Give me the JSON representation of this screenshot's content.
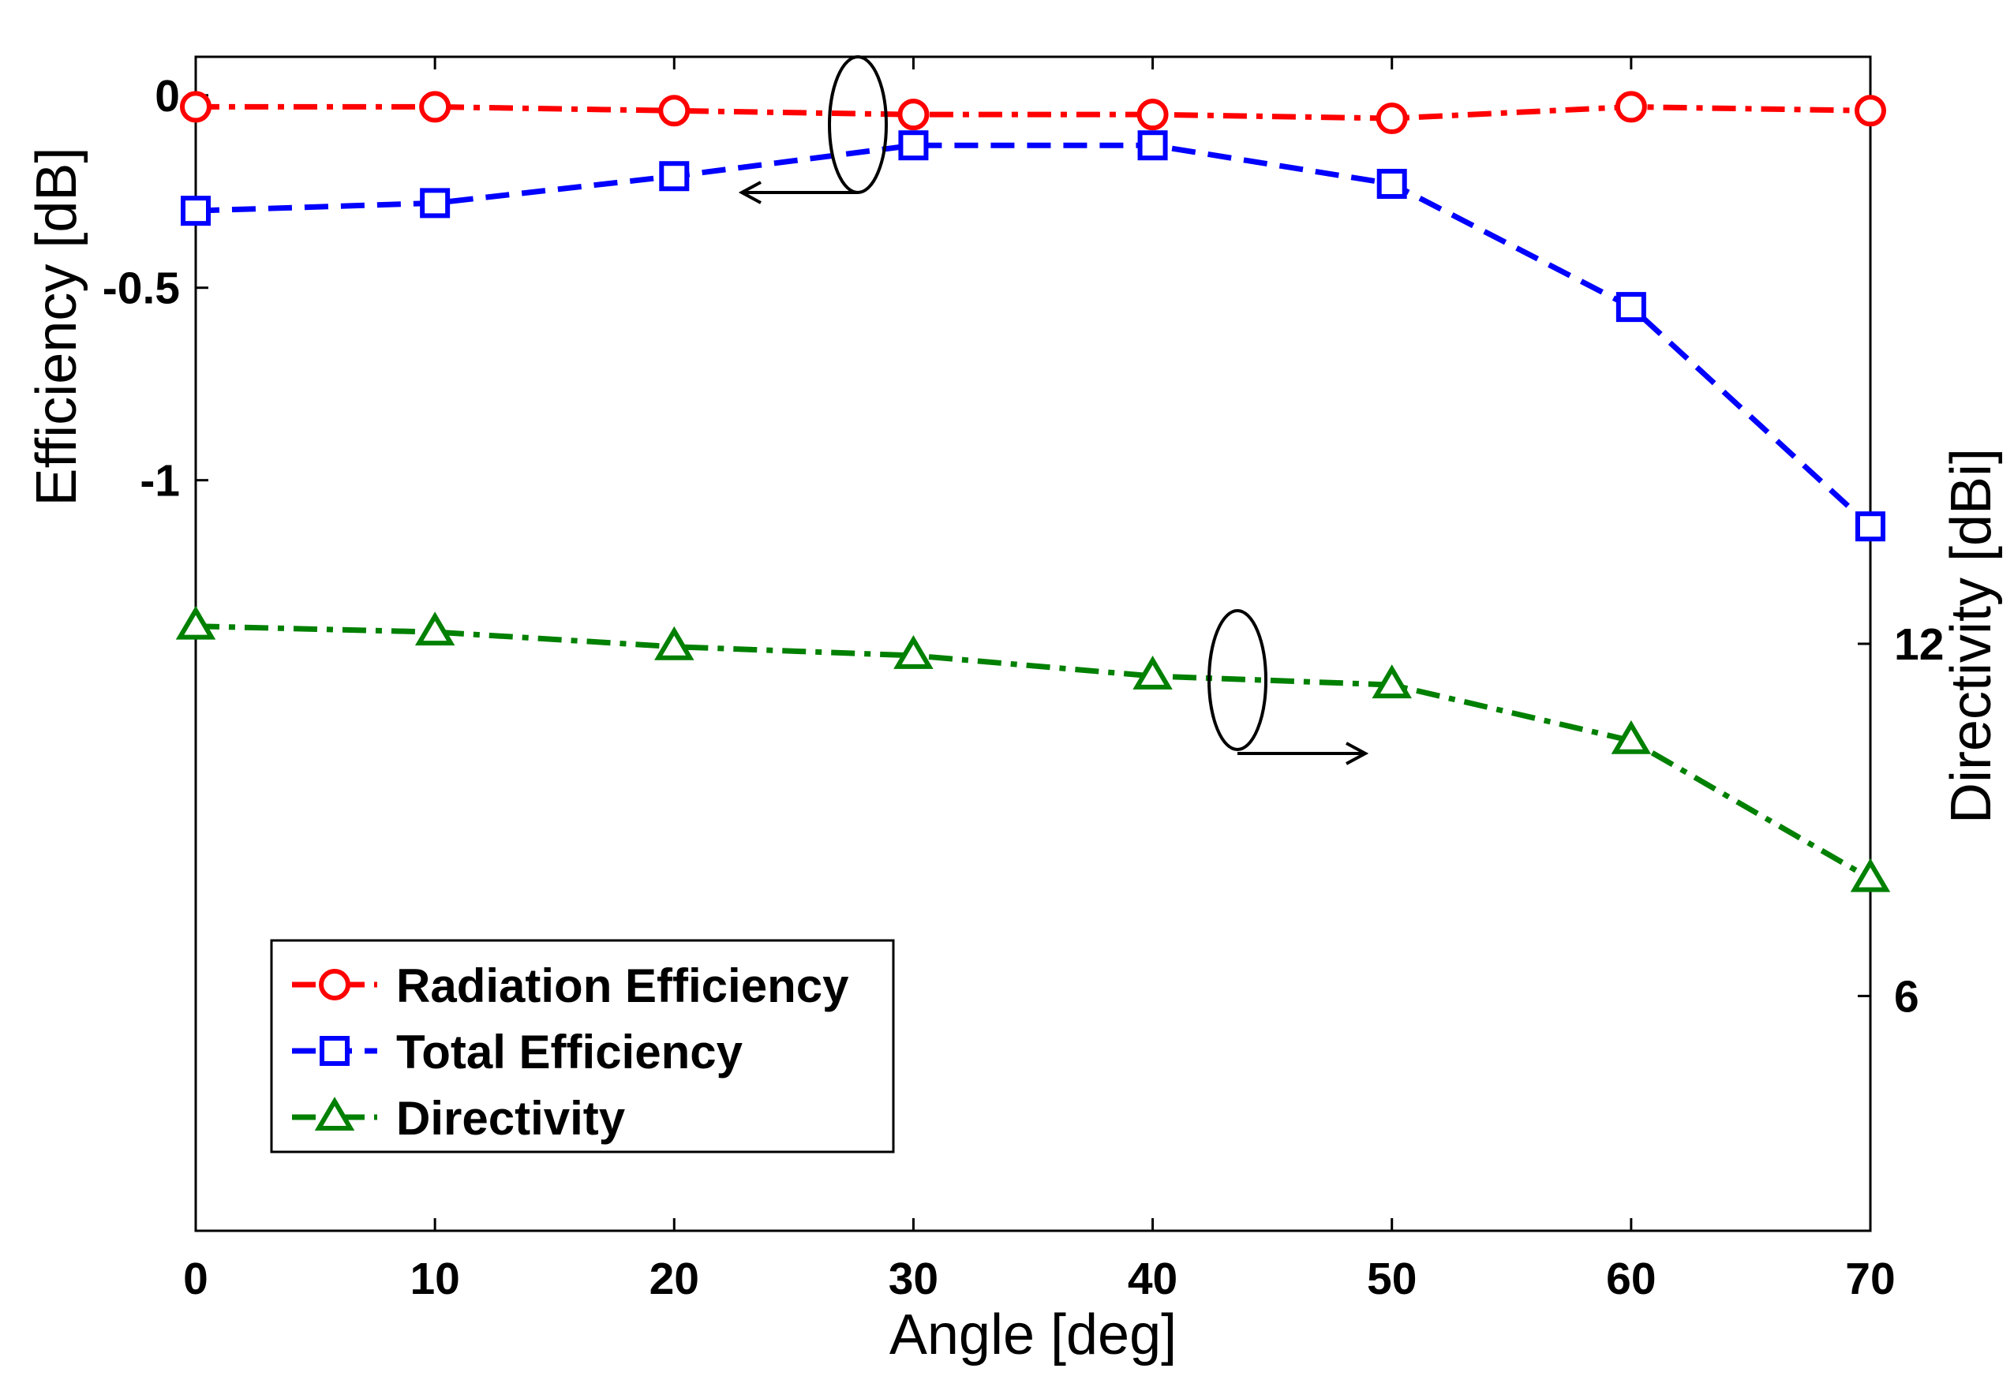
{
  "chart_data": {
    "type": "line",
    "xlabel": "Angle [deg]",
    "ylabel_left": "Efficiency [dB]",
    "ylabel_right": "Directivity [dBi]",
    "x": [
      0,
      10,
      20,
      30,
      40,
      50,
      60,
      70
    ],
    "xlim": [
      0,
      70
    ],
    "xticks": [
      "0",
      "10",
      "20",
      "30",
      "40",
      "50",
      "60",
      "70"
    ],
    "ylim_left": [
      -2.95,
      0.1
    ],
    "yticks_left": [
      {
        "value": 0,
        "label": "0"
      },
      {
        "value": -0.5,
        "label": "-0.5"
      },
      {
        "value": -1,
        "label": "-1"
      }
    ],
    "ylim_right": [
      2,
      22
    ],
    "yticks_right": [
      {
        "value": 12,
        "label": "12"
      },
      {
        "value": 6,
        "label": "6"
      }
    ],
    "grid": false,
    "legend_position": "bottom-left",
    "series": [
      {
        "name": "Radiation Efficiency",
        "axis": "left",
        "color": "#ff0000",
        "dash": "dash-dot",
        "marker": "circle",
        "values": [
          -0.03,
          -0.03,
          -0.04,
          -0.05,
          -0.05,
          -0.06,
          -0.03,
          -0.04
        ]
      },
      {
        "name": "Total Efficiency",
        "axis": "left",
        "color": "#0000ff",
        "dash": "dashed",
        "marker": "square",
        "values": [
          -0.3,
          -0.28,
          -0.21,
          -0.13,
          -0.13,
          -0.23,
          -0.55,
          -1.12
        ]
      },
      {
        "name": "Directivity",
        "axis": "right",
        "color": "#008000",
        "dash": "dash-dot",
        "marker": "triangle",
        "values": [
          12.3,
          12.2,
          11.95,
          11.8,
          11.45,
          11.3,
          10.35,
          8.0
        ]
      }
    ],
    "annotations": [
      {
        "target": "left-axis",
        "series": [
          "Radiation Efficiency",
          "Total Efficiency"
        ],
        "arrow": "left"
      },
      {
        "target": "right-axis",
        "series": [
          "Directivity"
        ],
        "arrow": "right"
      }
    ]
  }
}
